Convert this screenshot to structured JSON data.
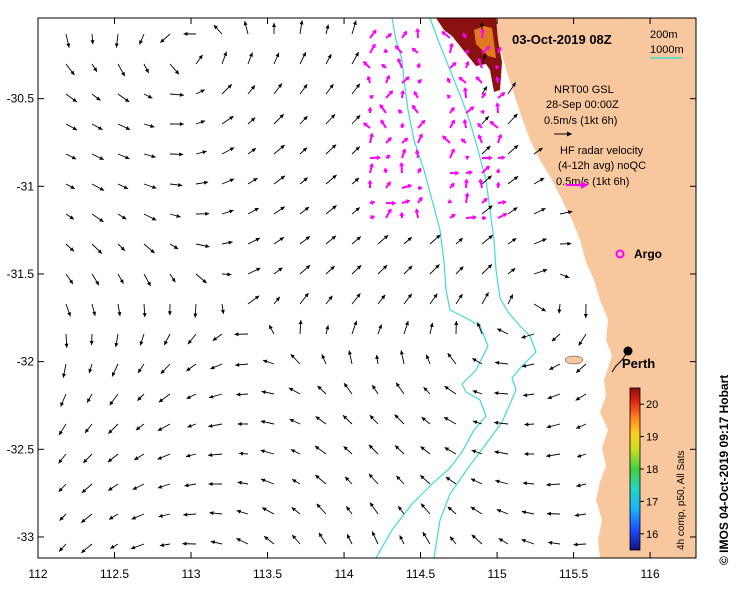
{
  "map": {
    "date": "03-Oct-2019 08Z",
    "credit": "© IMOS 04-Oct-2019 09:17 Hobart",
    "lon_ticks": [
      "112",
      "112.5",
      "113",
      "113.5",
      "114",
      "114.5",
      "115",
      "115.5",
      "116"
    ],
    "lat_ticks": [
      "-30.5",
      "-31",
      "-31.5",
      "-32",
      "-32.5",
      "-33"
    ],
    "lon_range": [
      112,
      116.3
    ],
    "lat_range": [
      -33.12,
      -30.04
    ]
  },
  "legend": {
    "contour_200": "200m",
    "contour_1000": "1000m",
    "contour_color": "#3fdcd4",
    "model_title": "NRT00 GSL",
    "model_date": "28-Sep 00:00Z",
    "model_scale": "0.5m/s (1kt 6h)",
    "radar_title": "HF radar velocity",
    "radar_sub": "(4-12h avg) noQC",
    "radar_scale": "0.5m/s (1kt 6h)",
    "radar_color": "#ff00ff"
  },
  "places": {
    "argo": "Argo",
    "perth": "Perth"
  },
  "colorbar": {
    "ticks": [
      "20",
      "19",
      "18",
      "17",
      "16"
    ],
    "label": "4h comp, p50, All Sats",
    "range": [
      15.5,
      20.5
    ]
  },
  "colors": {
    "land": "#f8c79e",
    "sst_warm": "#8b1010",
    "sst_orange": "#e07a20"
  }
}
